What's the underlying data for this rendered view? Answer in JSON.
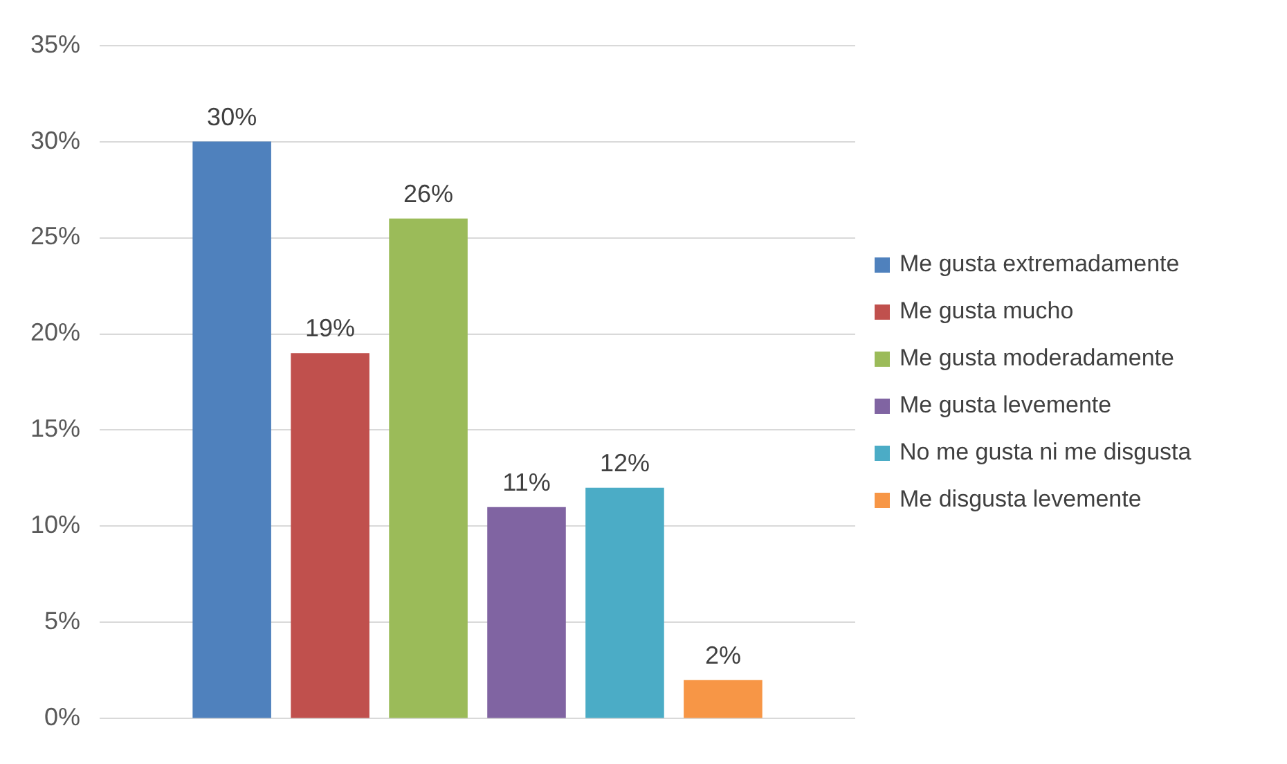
{
  "chart_data": {
    "type": "bar",
    "categories": [
      null
    ],
    "series": [
      {
        "name": "Me gusta extremadamente",
        "color": "#4f81bd",
        "values": [
          30
        ],
        "value_labels": [
          "30%"
        ]
      },
      {
        "name": "Me gusta mucho",
        "color": "#c0504d",
        "values": [
          19
        ],
        "value_labels": [
          "19%"
        ]
      },
      {
        "name": "Me gusta moderadamente",
        "color": "#9bbb59",
        "values": [
          26
        ],
        "value_labels": [
          "26%"
        ]
      },
      {
        "name": "Me gusta levemente",
        "color": "#8064a2",
        "values": [
          11
        ],
        "value_labels": [
          "11%"
        ]
      },
      {
        "name": "No me gusta ni me disgusta",
        "color": "#4bacc6",
        "values": [
          12
        ],
        "value_labels": [
          "12%"
        ]
      },
      {
        "name": "Me disgusta levemente",
        "color": "#f79646",
        "values": [
          2
        ],
        "value_labels": [
          "2%"
        ]
      }
    ],
    "ylim": [
      0,
      35
    ],
    "yticks": [
      {
        "value": 0,
        "label": "0%"
      },
      {
        "value": 5,
        "label": "5%"
      },
      {
        "value": 10,
        "label": "10%"
      },
      {
        "value": 15,
        "label": "15%"
      },
      {
        "value": 20,
        "label": "20%"
      },
      {
        "value": 25,
        "label": "25%"
      },
      {
        "value": 30,
        "label": "30%"
      },
      {
        "value": 35,
        "label": "35%"
      }
    ],
    "grid": "y",
    "legend": "right"
  }
}
